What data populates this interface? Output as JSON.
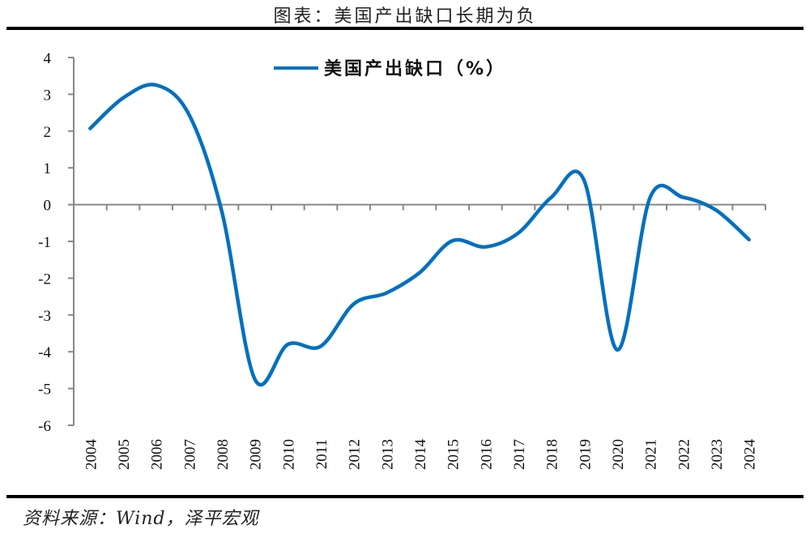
{
  "header": {
    "title": "图表：美国产出缺口长期为负"
  },
  "footer": {
    "source": "资料来源：Wind，泽平宏观"
  },
  "colors": {
    "series": "#0070C0",
    "axis": "#888888",
    "rule": "#000000"
  },
  "chart_data": {
    "type": "line",
    "title": "图表：美国产出缺口长期为负",
    "xlabel": "",
    "ylabel": "",
    "ylim": [
      -6,
      4
    ],
    "yticks": [
      4,
      3,
      2,
      1,
      0,
      -1,
      -2,
      -3,
      -4,
      -5,
      -6
    ],
    "grid": false,
    "legend_position": "top-center",
    "x": [
      "2004",
      "2005",
      "2006",
      "2007",
      "2008",
      "2009",
      "2010",
      "2011",
      "2012",
      "2013",
      "2014",
      "2015",
      "2016",
      "2017",
      "2018",
      "2019",
      "2020",
      "2021",
      "2022",
      "2023",
      "2024"
    ],
    "series": [
      {
        "name": "美国产出缺口（%）",
        "color": "#0070C0",
        "values": [
          2.07,
          2.9,
          3.25,
          2.45,
          -0.2,
          -4.75,
          -3.8,
          -3.85,
          -2.7,
          -2.4,
          -1.85,
          -0.98,
          -1.15,
          -0.77,
          0.2,
          0.65,
          -3.95,
          0.2,
          0.2,
          -0.15,
          -0.95
        ]
      }
    ]
  }
}
